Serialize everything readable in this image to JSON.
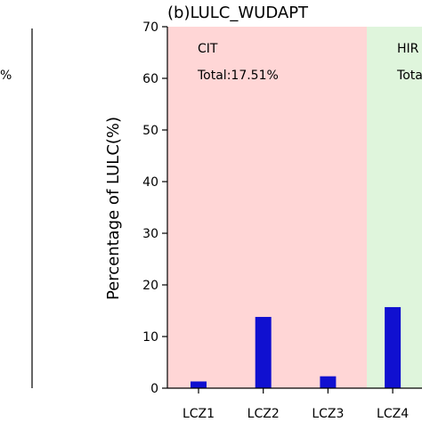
{
  "left_panel": {
    "fragment_text": "%"
  },
  "chart_data": {
    "type": "bar",
    "title": "(b)LULC_WUDAPT",
    "ylabel": "Percentage of LULC(%)",
    "xlabel": "",
    "ylim": [
      0,
      70
    ],
    "yticks": [
      0,
      10,
      20,
      30,
      40,
      50,
      60,
      70
    ],
    "grid": false,
    "categories": [
      "LCZ1",
      "LCZ2",
      "LCZ3",
      "LCZ4"
    ],
    "values": [
      1.3,
      13.8,
      2.3,
      15.7
    ],
    "bar_color": "#1010d0",
    "regions": [
      {
        "label": "CIT",
        "total": "Total:17.51%",
        "color": "#ffd6d6",
        "x_start": -0.5,
        "x_end": 2.6
      },
      {
        "label": "HIR",
        "total": "Tota",
        "color": "#dff5dc",
        "x_start": 2.6,
        "x_end": 3.6
      }
    ]
  }
}
